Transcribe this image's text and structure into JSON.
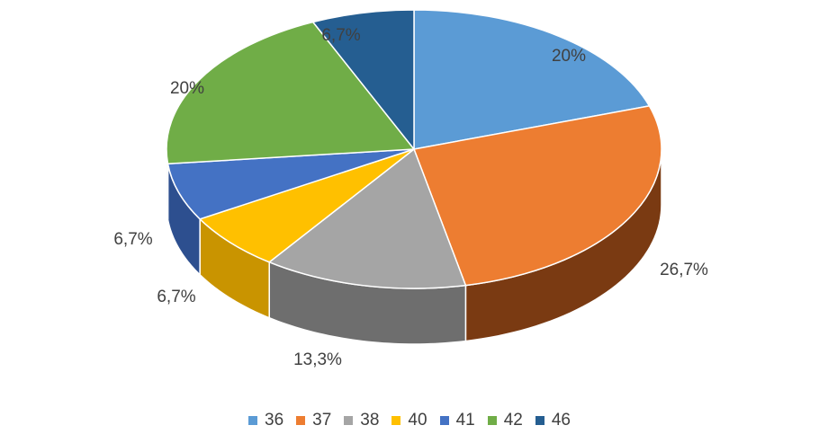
{
  "chart_data": {
    "type": "pie",
    "style": "3d",
    "categories": [
      "36",
      "37",
      "38",
      "40",
      "41",
      "42",
      "46"
    ],
    "values": [
      20,
      26.7,
      13.3,
      6.7,
      6.7,
      20,
      6.7
    ],
    "data_labels": [
      "20%",
      "26,7%",
      "13,3%",
      "6,7%",
      "6,7%",
      "20%",
      "6,7%"
    ],
    "colors": [
      "#5B9BD5",
      "#ED7D31",
      "#A5A5A5",
      "#FFC000",
      "#4472C4",
      "#70AD47",
      "#255E91"
    ],
    "side_colors": [
      "#3A6D9C",
      "#7A3A12",
      "#6E6E6E",
      "#C99400",
      "#2D4F8F",
      "#4A7A2E",
      "#183F63"
    ],
    "legend_position": "bottom",
    "title": ""
  }
}
